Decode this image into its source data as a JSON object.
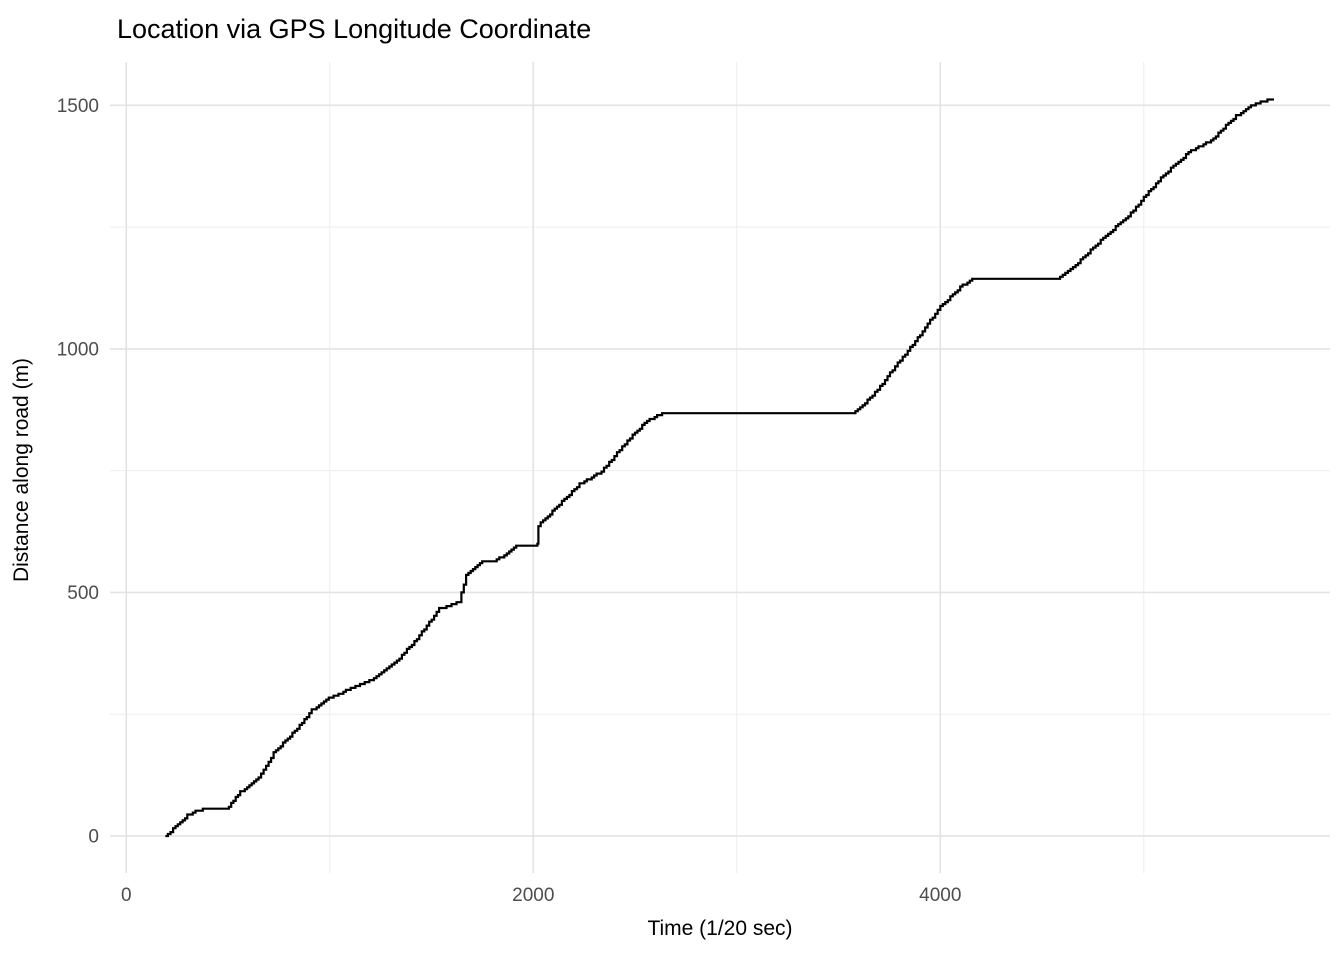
{
  "title": "Location via GPS Longitude Coordinate",
  "chart_data": {
    "type": "line",
    "title": "Location via GPS Longitude Coordinate",
    "xlabel": "Time (1/20 sec)",
    "ylabel": "Distance along road (m)",
    "x_ticks": [
      0,
      2000,
      4000
    ],
    "x_minor_ticks": [
      1000,
      3000,
      5000
    ],
    "y_ticks": [
      0,
      500,
      1000,
      1500
    ],
    "y_minor_ticks": [
      250,
      750,
      1250
    ],
    "xlim": [
      -80,
      5915
    ],
    "ylim": [
      -76,
      1589
    ],
    "grid": "major and minor, no axis lines, white background",
    "legend_position": "none",
    "line_color": "#000000",
    "major_grid_color": "#e3e3e3",
    "minor_grid_color": "#ededed",
    "line_style": "stepped (GPS-quantized) monotone increase with plateaus",
    "series": [
      {
        "name": "distance-along-road",
        "points": [
          [
            192,
            0
          ],
          [
            230,
            14
          ],
          [
            265,
            28
          ],
          [
            300,
            42
          ],
          [
            340,
            53
          ],
          [
            400,
            55
          ],
          [
            493,
            56
          ],
          [
            560,
            90
          ],
          [
            650,
            119
          ],
          [
            724,
            170
          ],
          [
            828,
            215
          ],
          [
            911,
            258
          ],
          [
            995,
            282
          ],
          [
            1103,
            303
          ],
          [
            1217,
            323
          ],
          [
            1330,
            360
          ],
          [
            1428,
            405
          ],
          [
            1537,
            466
          ],
          [
            1635,
            480
          ],
          [
            1670,
            534
          ],
          [
            1749,
            562
          ],
          [
            1808,
            564
          ],
          [
            1870,
            580
          ],
          [
            1916,
            597
          ],
          [
            2020,
            598
          ],
          [
            2025,
            637
          ],
          [
            2060,
            652
          ],
          [
            2128,
            681
          ],
          [
            2227,
            722
          ],
          [
            2335,
            748
          ],
          [
            2424,
            793
          ],
          [
            2488,
            824
          ],
          [
            2547,
            847
          ],
          [
            2596,
            861
          ],
          [
            2645,
            868
          ],
          [
            3571,
            868
          ],
          [
            3630,
            889
          ],
          [
            3704,
            922
          ],
          [
            3753,
            951
          ],
          [
            3803,
            977
          ],
          [
            3852,
            1002
          ],
          [
            3901,
            1029
          ],
          [
            3950,
            1059
          ],
          [
            4000,
            1086
          ],
          [
            4049,
            1106
          ],
          [
            4098,
            1127
          ],
          [
            4157,
            1143
          ],
          [
            4576,
            1143
          ],
          [
            4640,
            1162
          ],
          [
            4714,
            1192
          ],
          [
            4788,
            1223
          ],
          [
            4862,
            1250
          ],
          [
            4936,
            1278
          ],
          [
            5000,
            1311
          ],
          [
            5084,
            1350
          ],
          [
            5158,
            1380
          ],
          [
            5232,
            1407
          ],
          [
            5330,
            1427
          ],
          [
            5379,
            1448
          ],
          [
            5453,
            1478
          ],
          [
            5527,
            1499
          ],
          [
            5586,
            1509
          ],
          [
            5640,
            1513
          ]
        ]
      }
    ]
  }
}
